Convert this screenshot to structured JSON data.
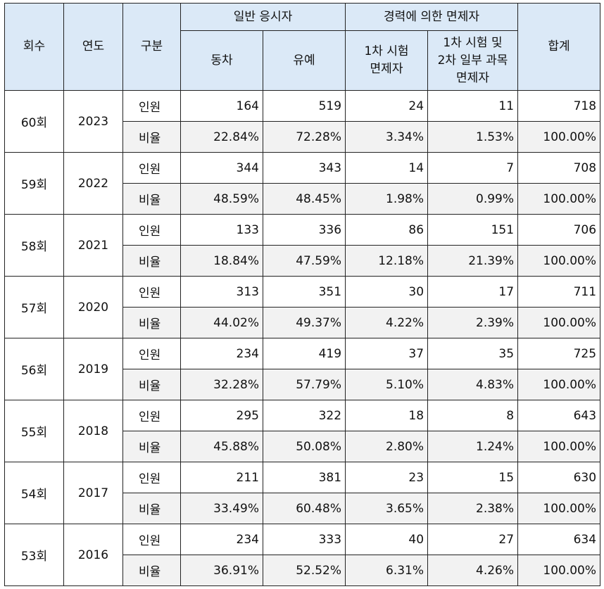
{
  "header": {
    "round": "회수",
    "year": "연도",
    "category": "구분",
    "general_group": "일반 응시자",
    "general_concurrent": "동차",
    "general_deferred": "유예",
    "career_group": "경력에 의한 면제자",
    "career_first_line1": "1차 시험",
    "career_first_line2": "면제자",
    "career_partial_line1": "1차 시험 및",
    "career_partial_line2": "2차 일부 과목",
    "career_partial_line3": "면제자",
    "total": "합계"
  },
  "labels": {
    "count": "인원",
    "ratio": "비율"
  },
  "rows": [
    {
      "round": "60회",
      "year": "2023",
      "count": [
        "164",
        "519",
        "24",
        "11",
        "718"
      ],
      "ratio": [
        "22.84%",
        "72.28%",
        "3.34%",
        "1.53%",
        "100.00%"
      ]
    },
    {
      "round": "59회",
      "year": "2022",
      "count": [
        "344",
        "343",
        "14",
        "7",
        "708"
      ],
      "ratio": [
        "48.59%",
        "48.45%",
        "1.98%",
        "0.99%",
        "100.00%"
      ]
    },
    {
      "round": "58회",
      "year": "2021",
      "count": [
        "133",
        "336",
        "86",
        "151",
        "706"
      ],
      "ratio": [
        "18.84%",
        "47.59%",
        "12.18%",
        "21.39%",
        "100.00%"
      ]
    },
    {
      "round": "57회",
      "year": "2020",
      "count": [
        "313",
        "351",
        "30",
        "17",
        "711"
      ],
      "ratio": [
        "44.02%",
        "49.37%",
        "4.22%",
        "2.39%",
        "100.00%"
      ]
    },
    {
      "round": "56회",
      "year": "2019",
      "count": [
        "234",
        "419",
        "37",
        "35",
        "725"
      ],
      "ratio": [
        "32.28%",
        "57.79%",
        "5.10%",
        "4.83%",
        "100.00%"
      ]
    },
    {
      "round": "55회",
      "year": "2018",
      "count": [
        "295",
        "322",
        "18",
        "8",
        "643"
      ],
      "ratio": [
        "45.88%",
        "50.08%",
        "2.80%",
        "1.24%",
        "100.00%"
      ]
    },
    {
      "round": "54회",
      "year": "2017",
      "count": [
        "211",
        "381",
        "23",
        "15",
        "630"
      ],
      "ratio": [
        "33.49%",
        "60.48%",
        "3.65%",
        "2.38%",
        "100.00%"
      ]
    },
    {
      "round": "53회",
      "year": "2016",
      "count": [
        "234",
        "333",
        "40",
        "27",
        "634"
      ],
      "ratio": [
        "36.91%",
        "52.52%",
        "6.31%",
        "4.26%",
        "100.00%"
      ]
    }
  ]
}
